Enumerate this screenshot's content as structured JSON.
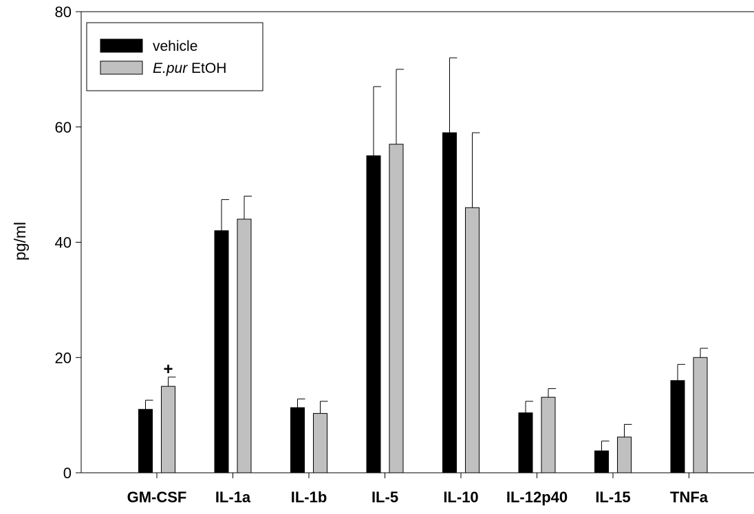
{
  "chart_data": {
    "type": "bar",
    "ylabel": "pg/ml",
    "xlabel": "",
    "ylim": [
      0,
      80
    ],
    "yticks": [
      "0",
      "20",
      "40",
      "60",
      "80"
    ],
    "categories": [
      "GM-CSF",
      "IL-1a",
      "IL-1b",
      "IL-5",
      "IL-10",
      "IL-12p40",
      "IL-15",
      "TNFa"
    ],
    "series": [
      {
        "name": "vehicle",
        "color": "#000000",
        "values": [
          11,
          42,
          11.3,
          55,
          59,
          10.4,
          3.8,
          16
        ],
        "errors": [
          1.6,
          5.4,
          1.5,
          12,
          13,
          2.0,
          1.7,
          2.8
        ]
      },
      {
        "name_italic": "E.pur",
        "name_rest": " EtOH",
        "color": "#c0c0c0",
        "values": [
          15,
          44,
          10.3,
          57,
          46,
          13.1,
          6.2,
          20
        ],
        "errors": [
          1.6,
          4.0,
          2.1,
          13,
          13,
          1.5,
          2.2,
          1.6
        ]
      }
    ],
    "annotations": [
      {
        "text": "+",
        "category": "GM-CSF",
        "series": 1
      }
    ],
    "legend_position": "top-left",
    "grid": false
  }
}
